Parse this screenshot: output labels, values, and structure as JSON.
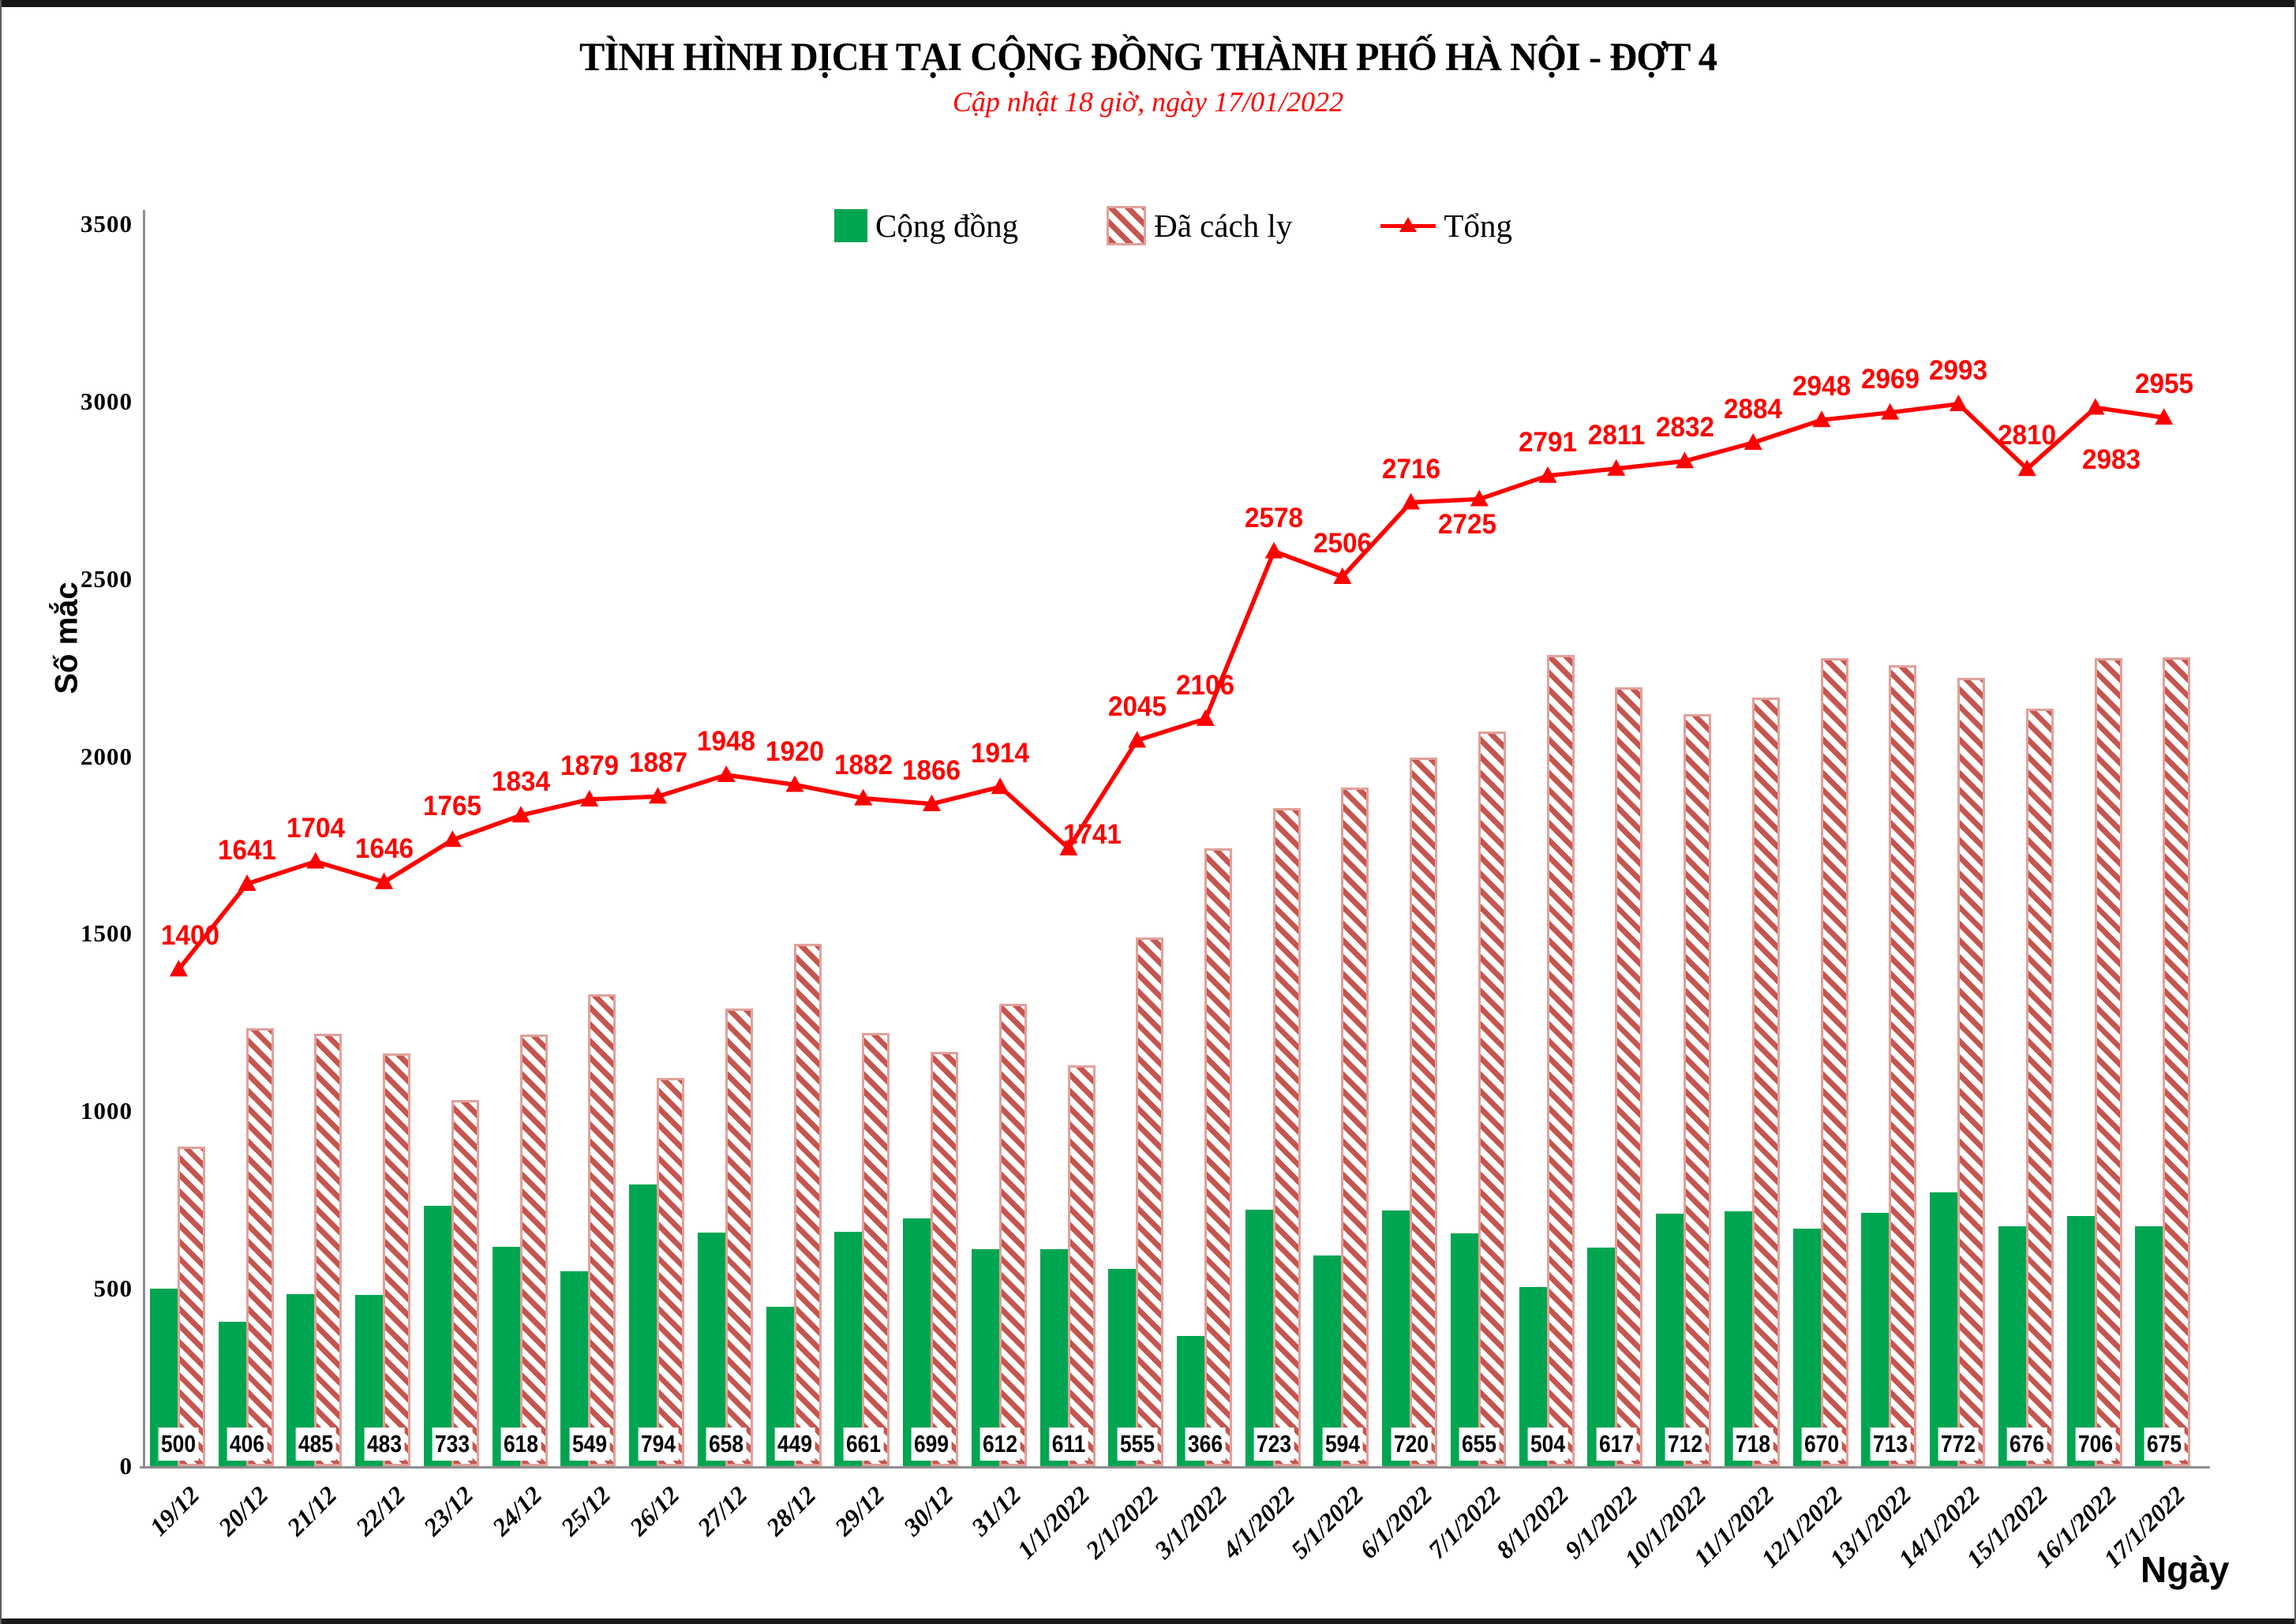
{
  "page": {
    "title": "TÌNH HÌNH DỊCH TẠI CỘNG ĐỒNG THÀNH PHỐ HÀ NỘI - ĐỢT 4",
    "subtitle": "Cập nhật 18 giờ, ngày 17/01/2022"
  },
  "legend": [
    {
      "label": "Cộng đồng",
      "swatch": "green-solid-square"
    },
    {
      "label": "Đã cách ly",
      "swatch": "red-hatched-square"
    },
    {
      "label": "Tổng",
      "swatch": "red-line-triangle-marker"
    }
  ],
  "colors": {
    "community_bar": "#00a551",
    "quarantined_stripe": "#c4564f",
    "quarantined_border": "#e0a19a",
    "total_line": "#ff0000",
    "subtitle_text": "#ff0000",
    "axis_line": "#8f8f8f"
  },
  "chart_data": {
    "type": "combo",
    "title": "TÌNH HÌNH DỊCH TẠI CỘNG ĐỒNG THÀNH PHỐ HÀ NỘI - ĐỢT 4",
    "subtitle": "Cập nhật 18 giờ, ngày 17/01/2022",
    "xlabel": "Ngày",
    "ylabel": "Số mắc",
    "ylim": [
      0,
      3500
    ],
    "yticks": [
      0,
      500,
      1000,
      1500,
      2000,
      2500,
      3000,
      3500
    ],
    "grid": false,
    "legend_position": "top-center",
    "categories": [
      "19/12",
      "20/12",
      "21/12",
      "22/12",
      "23/12",
      "24/12",
      "25/12",
      "26/12",
      "27/12",
      "28/12",
      "29/12",
      "30/12",
      "31/12",
      "1/1/2022",
      "2/1/2022",
      "3/1/2022",
      "4/1/2022",
      "5/1/2022",
      "6/1/2022",
      "7/1/2022",
      "8/1/2022",
      "9/1/2022",
      "10/1/2022",
      "11/1/2022",
      "12/1/2022",
      "13/1/2022",
      "14/1/2022",
      "15/1/2022",
      "16/1/2022",
      "17/1/2022"
    ],
    "series": [
      {
        "name": "Cộng đồng",
        "type": "bar",
        "style": "solid",
        "color": "#00a551",
        "values": [
          500,
          406,
          485,
          483,
          733,
          618,
          549,
          794,
          658,
          449,
          661,
          699,
          612,
          611,
          555,
          366,
          723,
          594,
          720,
          655,
          504,
          617,
          712,
          718,
          670,
          713,
          772,
          676,
          706,
          675
        ],
        "labels_shown": true
      },
      {
        "name": "Đã cách ly",
        "type": "bar",
        "style": "hatched",
        "color": "#c4564f",
        "values": [
          900,
          1235,
          1219,
          1163,
          1032,
          1216,
          1330,
          1093,
          1290,
          1471,
          1221,
          1167,
          1302,
          1130,
          1490,
          1740,
          1855,
          1912,
          1996,
          2070,
          2287,
          2194,
          2120,
          2166,
          2278,
          2256,
          2221,
          2134,
          2277,
          2280
        ],
        "labels_shown": false
      },
      {
        "name": "Tổng",
        "type": "line",
        "marker": "triangle",
        "color": "#ff0000",
        "values": [
          1400,
          1641,
          1704,
          1646,
          1765,
          1834,
          1879,
          1887,
          1948,
          1920,
          1882,
          1866,
          1914,
          1741,
          2045,
          2106,
          2578,
          2506,
          2716,
          2725,
          2791,
          2811,
          2832,
          2884,
          2948,
          2969,
          2993,
          2810,
          2983,
          2955
        ],
        "labels_shown": true,
        "label_layout": {
          "0": {
            "dx": 15
          },
          "13": {
            "dx": 30,
            "dy": 25
          },
          "19": {
            "side": "below",
            "dx": -15,
            "dy": -4
          },
          "28": {
            "side": "below",
            "dx": 20,
            "dy": 30
          }
        }
      }
    ]
  }
}
